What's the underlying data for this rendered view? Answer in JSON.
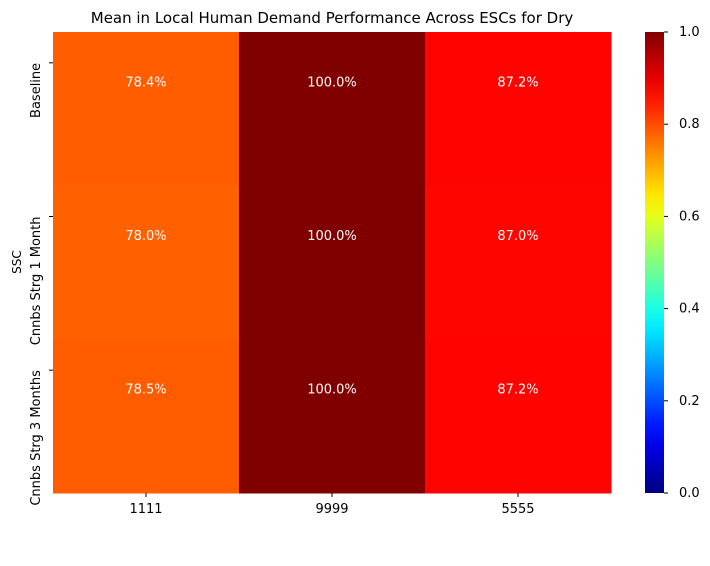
{
  "chart_data": {
    "type": "heatmap",
    "title": "Mean in Local Human Demand Performance Across ESCs for Dry",
    "xlabel": "",
    "ylabel": "SSC",
    "x_categories": [
      "1111",
      "9999",
      "5555"
    ],
    "y_categories": [
      "Baseline",
      "Cnnbs Strg 1 Month",
      "Cnnbs Strg 3 Months"
    ],
    "values": [
      [
        0.784,
        1.0,
        0.872
      ],
      [
        0.78,
        1.0,
        0.87
      ],
      [
        0.785,
        1.0,
        0.872
      ]
    ],
    "cell_labels": [
      [
        "78.4%",
        "100.0%",
        "87.2%"
      ],
      [
        "78.0%",
        "100.0%",
        "87.0%"
      ],
      [
        "78.5%",
        "100.0%",
        "87.2%"
      ]
    ],
    "colormap": "jet",
    "colorbar": {
      "range": [
        0.0,
        1.0
      ],
      "ticks": [
        "0.0",
        "0.2",
        "0.4",
        "0.6",
        "0.8",
        "1.0"
      ]
    }
  }
}
